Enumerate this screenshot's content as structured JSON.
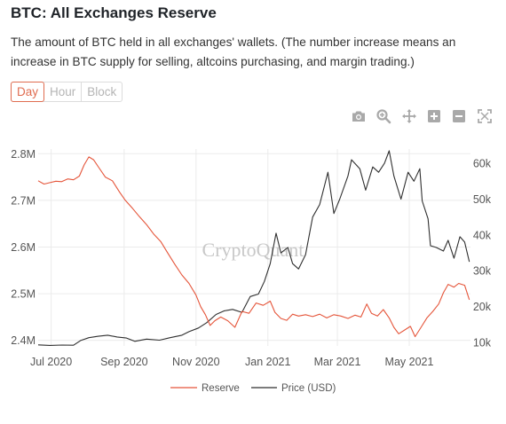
{
  "header": {
    "title": "BTC: All Exchanges Reserve",
    "description": "The amount of BTC held in all exchanges' wallets. (The number increase means an increase in BTC supply for selling, altcoins purchasing, and margin trading.)"
  },
  "range_buttons": [
    {
      "label": "Day",
      "active": true
    },
    {
      "label": "Hour",
      "active": false
    },
    {
      "label": "Block",
      "active": false
    }
  ],
  "toolbar": [
    "camera-icon",
    "zoom-icon",
    "pan-icon",
    "zoom-in-icon",
    "zoom-out-icon",
    "autoscale-icon"
  ],
  "watermark": "CryptoQuant",
  "colors": {
    "reserve": "#e5553a",
    "price": "#2f2f2f",
    "grid": "#ebebeb"
  },
  "chart_data": {
    "type": "line",
    "title": "BTC: All Exchanges Reserve",
    "x_labels": [
      "Jul 2020",
      "Sep 2020",
      "Nov 2020",
      "Jan 2021",
      "Mar 2021",
      "May 2021"
    ],
    "x_label_dates": [
      "2020-07-01",
      "2020-09-01",
      "2020-11-01",
      "2021-01-01",
      "2021-03-01",
      "2021-05-01"
    ],
    "x_range": [
      "2020-06-20",
      "2021-06-22"
    ],
    "left_axis": {
      "ticks": [
        2400000,
        2500000,
        2600000,
        2700000,
        2800000
      ],
      "labels": [
        "2.4M",
        "2.5M",
        "2.6M",
        "2.7M",
        "2.8M"
      ],
      "range": [
        2388000,
        2810000
      ]
    },
    "right_axis": {
      "ticks": [
        10000,
        20000,
        30000,
        40000,
        50000,
        60000
      ],
      "labels": [
        "10k",
        "20k",
        "30k",
        "40k",
        "50k",
        "60k"
      ],
      "range": [
        9000,
        64000
      ]
    },
    "grid": true,
    "legend_position": "bottom-center",
    "series": [
      {
        "name": "Reserve",
        "axis": "left",
        "color": "#e5553a",
        "points": [
          [
            "2020-06-20",
            2742000
          ],
          [
            "2020-06-25",
            2735000
          ],
          [
            "2020-06-30",
            2738000
          ],
          [
            "2020-07-05",
            2741000
          ],
          [
            "2020-07-10",
            2740000
          ],
          [
            "2020-07-15",
            2746000
          ],
          [
            "2020-07-20",
            2744000
          ],
          [
            "2020-07-25",
            2752000
          ],
          [
            "2020-07-29",
            2776000
          ],
          [
            "2020-08-02",
            2793000
          ],
          [
            "2020-08-06",
            2787000
          ],
          [
            "2020-08-10",
            2772000
          ],
          [
            "2020-08-16",
            2750000
          ],
          [
            "2020-08-22",
            2742000
          ],
          [
            "2020-08-28",
            2718000
          ],
          [
            "2020-09-02",
            2700000
          ],
          [
            "2020-09-08",
            2683000
          ],
          [
            "2020-09-14",
            2665000
          ],
          [
            "2020-09-20",
            2648000
          ],
          [
            "2020-09-26",
            2628000
          ],
          [
            "2020-10-02",
            2612000
          ],
          [
            "2020-10-08",
            2587000
          ],
          [
            "2020-10-14",
            2563000
          ],
          [
            "2020-10-20",
            2540000
          ],
          [
            "2020-10-26",
            2522000
          ],
          [
            "2020-11-01",
            2497000
          ],
          [
            "2020-11-05",
            2472000
          ],
          [
            "2020-11-09",
            2455000
          ],
          [
            "2020-11-13",
            2432000
          ],
          [
            "2020-11-17",
            2442000
          ],
          [
            "2020-11-22",
            2450000
          ],
          [
            "2020-11-28",
            2442000
          ],
          [
            "2020-12-04",
            2428000
          ],
          [
            "2020-12-10",
            2462000
          ],
          [
            "2020-12-16",
            2458000
          ],
          [
            "2020-12-22",
            2480000
          ],
          [
            "2020-12-28",
            2475000
          ],
          [
            "2021-01-03",
            2484000
          ],
          [
            "2021-01-07",
            2460000
          ],
          [
            "2021-01-12",
            2447000
          ],
          [
            "2021-01-17",
            2443000
          ],
          [
            "2021-01-22",
            2456000
          ],
          [
            "2021-01-27",
            2452000
          ],
          [
            "2021-02-02",
            2455000
          ],
          [
            "2021-02-08",
            2451000
          ],
          [
            "2021-02-14",
            2456000
          ],
          [
            "2021-02-20",
            2448000
          ],
          [
            "2021-02-26",
            2455000
          ],
          [
            "2021-03-04",
            2452000
          ],
          [
            "2021-03-10",
            2447000
          ],
          [
            "2021-03-16",
            2454000
          ],
          [
            "2021-03-21",
            2450000
          ],
          [
            "2021-03-26",
            2478000
          ],
          [
            "2021-03-30",
            2458000
          ],
          [
            "2021-04-04",
            2452000
          ],
          [
            "2021-04-09",
            2466000
          ],
          [
            "2021-04-14",
            2448000
          ],
          [
            "2021-04-18",
            2428000
          ],
          [
            "2021-04-22",
            2414000
          ],
          [
            "2021-04-27",
            2422000
          ],
          [
            "2021-05-02",
            2430000
          ],
          [
            "2021-05-06",
            2408000
          ],
          [
            "2021-05-11",
            2428000
          ],
          [
            "2021-05-16",
            2448000
          ],
          [
            "2021-05-21",
            2462000
          ],
          [
            "2021-05-26",
            2478000
          ],
          [
            "2021-05-30",
            2502000
          ],
          [
            "2021-06-03",
            2520000
          ],
          [
            "2021-06-08",
            2514000
          ],
          [
            "2021-06-12",
            2522000
          ],
          [
            "2021-06-17",
            2518000
          ],
          [
            "2021-06-21",
            2487000
          ]
        ]
      },
      {
        "name": "Price (USD)",
        "axis": "right",
        "color": "#2f2f2f",
        "points": [
          [
            "2020-06-20",
            9300
          ],
          [
            "2020-06-30",
            9150
          ],
          [
            "2020-07-10",
            9250
          ],
          [
            "2020-07-20",
            9200
          ],
          [
            "2020-07-26",
            10500
          ],
          [
            "2020-08-02",
            11300
          ],
          [
            "2020-08-10",
            11700
          ],
          [
            "2020-08-18",
            12000
          ],
          [
            "2020-08-26",
            11500
          ],
          [
            "2020-09-03",
            11200
          ],
          [
            "2020-09-10",
            10300
          ],
          [
            "2020-09-20",
            10900
          ],
          [
            "2020-10-01",
            10600
          ],
          [
            "2020-10-10",
            11300
          ],
          [
            "2020-10-20",
            12000
          ],
          [
            "2020-10-26",
            13000
          ],
          [
            "2020-11-03",
            14000
          ],
          [
            "2020-11-10",
            15500
          ],
          [
            "2020-11-18",
            17800
          ],
          [
            "2020-11-25",
            18800
          ],
          [
            "2020-12-02",
            19200
          ],
          [
            "2020-12-10",
            18400
          ],
          [
            "2020-12-17",
            22800
          ],
          [
            "2020-12-24",
            23500
          ],
          [
            "2020-12-29",
            27000
          ],
          [
            "2021-01-03",
            32000
          ],
          [
            "2021-01-08",
            40500
          ],
          [
            "2021-01-12",
            35000
          ],
          [
            "2021-01-18",
            36500
          ],
          [
            "2021-01-22",
            32000
          ],
          [
            "2021-01-27",
            30500
          ],
          [
            "2021-02-02",
            34500
          ],
          [
            "2021-02-08",
            45000
          ],
          [
            "2021-02-14",
            48500
          ],
          [
            "2021-02-21",
            57500
          ],
          [
            "2021-02-26",
            46000
          ],
          [
            "2021-03-03",
            50000
          ],
          [
            "2021-03-10",
            56500
          ],
          [
            "2021-03-13",
            61000
          ],
          [
            "2021-03-20",
            58500
          ],
          [
            "2021-03-25",
            52500
          ],
          [
            "2021-03-31",
            59000
          ],
          [
            "2021-04-05",
            57500
          ],
          [
            "2021-04-10",
            60000
          ],
          [
            "2021-04-14",
            63500
          ],
          [
            "2021-04-18",
            56500
          ],
          [
            "2021-04-24",
            50000
          ],
          [
            "2021-04-30",
            57500
          ],
          [
            "2021-05-05",
            55000
          ],
          [
            "2021-05-10",
            58500
          ],
          [
            "2021-05-12",
            49500
          ],
          [
            "2021-05-17",
            44500
          ],
          [
            "2021-05-19",
            37000
          ],
          [
            "2021-05-24",
            36500
          ],
          [
            "2021-05-30",
            35500
          ],
          [
            "2021-06-03",
            38500
          ],
          [
            "2021-06-08",
            33500
          ],
          [
            "2021-06-13",
            39500
          ],
          [
            "2021-06-17",
            38000
          ],
          [
            "2021-06-21",
            32500
          ]
        ]
      }
    ]
  }
}
